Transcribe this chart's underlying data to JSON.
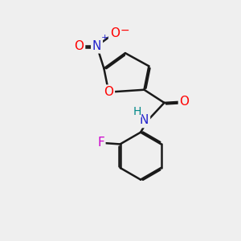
{
  "bg_color": "#efefef",
  "bond_color": "#1a1a1a",
  "bond_width": 1.8,
  "dbo": 0.055,
  "atom_colors": {
    "O": "#ff0000",
    "N_amide": "#2222cc",
    "N_nitro": "#2222cc",
    "F": "#cc00cc",
    "H": "#008888",
    "C": "#1a1a1a"
  },
  "font_size": 11,
  "fig_size": [
    3.0,
    3.0
  ],
  "dpi": 100,
  "xlim": [
    0,
    10
  ],
  "ylim": [
    0,
    10
  ]
}
